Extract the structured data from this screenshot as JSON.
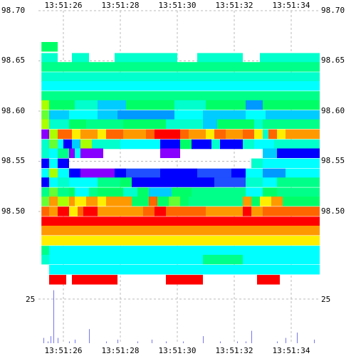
{
  "chart_data": [
    {
      "type": "heatmap",
      "title": "",
      "xlabel": "",
      "ylabel": "",
      "grid": true,
      "x_ticks": [
        "13:51:26",
        "13:51:28",
        "13:51:30",
        "13:51:32",
        "13:51:34"
      ],
      "y_ticks": [
        "98.70",
        "98.65",
        "98.60",
        "98.55",
        "98.50"
      ],
      "ylim": [
        98.455,
        98.7
      ],
      "x_range_seconds": [
        25.23,
        35.0
      ],
      "x_tick_seconds": [
        26,
        28,
        30,
        32,
        34
      ],
      "level_step": 0.0096,
      "palette": [
        "#00ff66",
        "#00ff88",
        "#00ffcc",
        "#00ffff",
        "#00ccff",
        "#0099ff",
        "#1f4fff",
        "#0000ff",
        "#8800ff",
        "#ff0000",
        "#ff6600",
        "#ff9900",
        "#ffee00",
        "#aaff00",
        "#66ff33"
      ],
      "series": [
        {
          "price": 98.664,
          "segments": [
            [
              25.23,
              25.8,
              0
            ]
          ]
        },
        {
          "price": 98.653,
          "segments": [
            [
              25.23,
              25.8,
              2
            ],
            [
              26.3,
              26.9,
              2
            ],
            [
              27.8,
              30.0,
              2
            ],
            [
              30.7,
              32.3,
              2
            ],
            [
              32.9,
              35.0,
              2
            ]
          ]
        },
        {
          "price": 98.644,
          "segments": [
            [
              25.23,
              35.0,
              1
            ]
          ]
        },
        {
          "price": 98.634,
          "segments": [
            [
              25.23,
              35.0,
              2
            ]
          ]
        },
        {
          "price": 98.625,
          "segments": [
            [
              25.23,
              35.0,
              3
            ]
          ]
        },
        {
          "price": 98.615,
          "segments": [
            [
              25.23,
              35.0,
              1
            ]
          ]
        },
        {
          "price": 98.606,
          "segments": [
            [
              25.23,
              25.5,
              13
            ],
            [
              25.5,
              26.4,
              0
            ],
            [
              26.4,
              27.2,
              2
            ],
            [
              27.2,
              28.2,
              4
            ],
            [
              28.2,
              29.9,
              0
            ],
            [
              29.9,
              31.0,
              2
            ],
            [
              31.0,
              32.4,
              0
            ],
            [
              32.4,
              33.0,
              5
            ],
            [
              33.0,
              35.0,
              0
            ]
          ]
        },
        {
          "price": 98.596,
          "segments": [
            [
              25.23,
              25.5,
              14
            ],
            [
              25.5,
              26.2,
              4
            ],
            [
              26.2,
              27.2,
              3
            ],
            [
              27.2,
              27.9,
              4
            ],
            [
              27.9,
              29.9,
              5
            ],
            [
              29.9,
              30.9,
              3
            ],
            [
              30.9,
              32.4,
              4
            ],
            [
              32.4,
              33.1,
              3
            ],
            [
              33.1,
              35.0,
              4
            ]
          ]
        },
        {
          "price": 98.587,
          "segments": [
            [
              25.23,
              25.5,
              13
            ],
            [
              25.5,
              26.2,
              2
            ],
            [
              26.2,
              26.8,
              0
            ],
            [
              26.8,
              28.1,
              1
            ],
            [
              28.1,
              29.6,
              0
            ],
            [
              29.6,
              30.9,
              2
            ],
            [
              30.9,
              31.4,
              4
            ],
            [
              31.4,
              32.7,
              0
            ],
            [
              32.7,
              33.0,
              2
            ],
            [
              33.0,
              35.0,
              1
            ]
          ]
        },
        {
          "price": 98.577,
          "segments": [
            [
              25.23,
              25.5,
              8
            ],
            [
              25.5,
              25.8,
              13
            ],
            [
              25.8,
              26.3,
              10
            ],
            [
              26.3,
              26.6,
              12
            ],
            [
              26.6,
              27.2,
              11
            ],
            [
              27.2,
              27.5,
              12
            ],
            [
              27.5,
              28.1,
              10
            ],
            [
              28.1,
              28.9,
              11
            ],
            [
              28.9,
              29.2,
              10
            ],
            [
              29.2,
              30.1,
              9
            ],
            [
              30.1,
              30.4,
              10
            ],
            [
              30.4,
              31.0,
              11
            ],
            [
              31.0,
              31.3,
              12
            ],
            [
              31.3,
              31.7,
              10
            ],
            [
              31.7,
              32.3,
              11
            ],
            [
              32.3,
              32.7,
              10
            ],
            [
              32.7,
              33.0,
              12
            ],
            [
              33.0,
              33.2,
              2
            ],
            [
              33.2,
              33.5,
              10
            ],
            [
              33.5,
              33.8,
              12
            ],
            [
              33.8,
              35.0,
              11
            ]
          ]
        },
        {
          "price": 98.567,
          "segments": [
            [
              25.23,
              25.5,
              2
            ],
            [
              25.5,
              25.8,
              14
            ],
            [
              25.8,
              26.0,
              3
            ],
            [
              26.0,
              26.3,
              7
            ],
            [
              26.3,
              26.6,
              4
            ],
            [
              26.6,
              27.0,
              13
            ],
            [
              27.0,
              28.0,
              2
            ],
            [
              28.0,
              29.4,
              3
            ],
            [
              29.4,
              30.1,
              7
            ],
            [
              30.1,
              30.5,
              0
            ],
            [
              30.5,
              31.2,
              7
            ],
            [
              31.2,
              31.5,
              2
            ],
            [
              31.5,
              32.3,
              7
            ],
            [
              32.3,
              32.7,
              2
            ],
            [
              32.7,
              33.4,
              3
            ],
            [
              33.4,
              35.0,
              2
            ]
          ]
        },
        {
          "price": 98.558,
          "segments": [
            [
              25.23,
              25.5,
              2
            ],
            [
              25.5,
              25.8,
              3
            ],
            [
              25.8,
              26.2,
              1
            ],
            [
              26.2,
              26.4,
              8
            ],
            [
              26.4,
              26.6,
              3
            ],
            [
              26.6,
              27.4,
              8
            ],
            [
              29.4,
              30.1,
              8
            ],
            [
              33.0,
              33.5,
              4
            ],
            [
              33.5,
              35.0,
              7
            ]
          ]
        },
        {
          "price": 98.548,
          "segments": [
            [
              25.23,
              25.5,
              7
            ],
            [
              25.5,
              25.8,
              3
            ],
            [
              25.8,
              26.2,
              7
            ],
            [
              32.6,
              33.0,
              2
            ],
            [
              33.0,
              35.0,
              3
            ]
          ]
        },
        {
          "price": 98.538,
          "segments": [
            [
              25.23,
              25.5,
              3
            ],
            [
              25.5,
              25.8,
              13
            ],
            [
              25.8,
              26.2,
              3
            ],
            [
              26.2,
              26.6,
              7
            ],
            [
              26.6,
              27.8,
              8
            ],
            [
              27.8,
              28.2,
              7
            ],
            [
              28.2,
              29.4,
              6
            ],
            [
              29.4,
              30.7,
              7
            ],
            [
              30.7,
              31.9,
              6
            ],
            [
              31.9,
              32.4,
              7
            ],
            [
              32.4,
              33.0,
              3
            ],
            [
              33.0,
              33.8,
              5
            ],
            [
              33.8,
              35.0,
              3
            ]
          ]
        },
        {
          "price": 98.529,
          "segments": [
            [
              25.23,
              25.5,
              7
            ],
            [
              25.5,
              25.8,
              3
            ],
            [
              25.8,
              26.2,
              2
            ],
            [
              26.2,
              27.2,
              3
            ],
            [
              27.2,
              28.0,
              1
            ],
            [
              28.0,
              28.4,
              0
            ],
            [
              28.4,
              29.2,
              7
            ],
            [
              29.2,
              31.3,
              7
            ],
            [
              31.3,
              32.4,
              6
            ],
            [
              32.4,
              33.0,
              2
            ],
            [
              33.0,
              33.5,
              3
            ],
            [
              33.5,
              35.0,
              1
            ]
          ]
        },
        {
          "price": 98.519,
          "segments": [
            [
              25.23,
              25.5,
              1
            ],
            [
              25.5,
              25.8,
              14
            ],
            [
              25.8,
              26.2,
              1
            ],
            [
              26.2,
              26.4,
              0
            ],
            [
              26.4,
              26.9,
              3
            ],
            [
              26.9,
              27.2,
              1
            ],
            [
              27.2,
              28.1,
              0
            ],
            [
              28.1,
              28.6,
              2
            ],
            [
              28.6,
              29.0,
              0
            ],
            [
              29.0,
              29.8,
              4
            ],
            [
              29.8,
              30.5,
              0
            ],
            [
              30.5,
              32.4,
              1
            ],
            [
              32.4,
              33.0,
              3
            ],
            [
              33.0,
              33.5,
              0
            ],
            [
              33.5,
              35.0,
              1
            ]
          ]
        },
        {
          "price": 98.51,
          "segments": [
            [
              25.23,
              25.5,
              14
            ],
            [
              25.5,
              25.8,
              11
            ],
            [
              25.8,
              26.2,
              13
            ],
            [
              26.2,
              26.4,
              11
            ],
            [
              26.4,
              26.8,
              12
            ],
            [
              26.8,
              27.2,
              11
            ],
            [
              27.2,
              27.5,
              12
            ],
            [
              27.5,
              28.4,
              11
            ],
            [
              28.4,
              29.0,
              0
            ],
            [
              29.0,
              29.3,
              10
            ],
            [
              29.3,
              29.7,
              0
            ],
            [
              29.7,
              30.1,
              14
            ],
            [
              30.1,
              30.4,
              0
            ],
            [
              30.4,
              32.3,
              1
            ],
            [
              32.3,
              32.6,
              11
            ],
            [
              32.6,
              32.9,
              0
            ],
            [
              32.9,
              33.3,
              12
            ],
            [
              33.3,
              33.7,
              11
            ],
            [
              33.7,
              35.0,
              0
            ]
          ]
        },
        {
          "price": 98.5,
          "segments": [
            [
              25.23,
              25.5,
              10
            ],
            [
              25.5,
              25.8,
              11
            ],
            [
              25.8,
              26.2,
              9
            ],
            [
              26.2,
              26.5,
              12
            ],
            [
              26.5,
              26.7,
              10
            ],
            [
              26.7,
              27.2,
              9
            ],
            [
              27.2,
              28.8,
              11
            ],
            [
              28.8,
              29.2,
              10
            ],
            [
              29.2,
              29.6,
              9
            ],
            [
              29.6,
              31.0,
              10
            ],
            [
              31.0,
              32.3,
              11
            ],
            [
              32.3,
              32.6,
              9
            ],
            [
              32.6,
              33.0,
              11
            ],
            [
              33.0,
              35.0,
              10
            ]
          ]
        },
        {
          "price": 98.49,
          "segments": [
            [
              25.23,
              35.0,
              9
            ]
          ]
        },
        {
          "price": 98.481,
          "segments": [
            [
              25.23,
              35.0,
              11
            ]
          ]
        },
        {
          "price": 98.471,
          "segments": [
            [
              25.23,
              35.0,
              12
            ]
          ]
        },
        {
          "price": 98.461,
          "segments": [
            [
              25.23,
              25.5,
              1
            ],
            [
              25.5,
              35.0,
              3
            ]
          ]
        },
        {
          "price": 98.452,
          "segments": [
            [
              25.23,
              25.5,
              2
            ],
            [
              25.5,
              30.9,
              3
            ],
            [
              30.9,
              32.3,
              1
            ],
            [
              32.3,
              35.0,
              3
            ]
          ]
        },
        {
          "price": 98.442,
          "segments": [
            [
              25.5,
              35.0,
              3
            ]
          ]
        },
        {
          "price": 98.432,
          "segments": [
            [
              25.5,
              26.1,
              9
            ],
            [
              26.3,
              27.9,
              9
            ],
            [
              29.6,
              30.9,
              9
            ],
            [
              32.8,
              33.6,
              9
            ]
          ]
        }
      ]
    },
    {
      "type": "bar",
      "title": "",
      "xlabel": "",
      "ylabel": "",
      "y_ticks": [
        "25"
      ],
      "ylim": [
        0,
        40
      ],
      "x_tick_labels": [
        "13:51:26",
        "13:51:28",
        "13:51:30",
        "13:51:32",
        "13:51:34"
      ],
      "x": [
        25.3,
        25.45,
        25.55,
        25.65,
        25.8,
        26.2,
        26.4,
        26.9,
        27.5,
        27.9,
        28.6,
        29.1,
        29.6,
        30.2,
        30.9,
        31.5,
        32.1,
        32.4,
        32.6,
        33.5,
        33.8,
        34.2,
        34.8
      ],
      "values": [
        3,
        1,
        4,
        30,
        3,
        1,
        2,
        8,
        1,
        2,
        1,
        2,
        1,
        1,
        4,
        1,
        1,
        1,
        7,
        1,
        3,
        6,
        2
      ]
    }
  ]
}
